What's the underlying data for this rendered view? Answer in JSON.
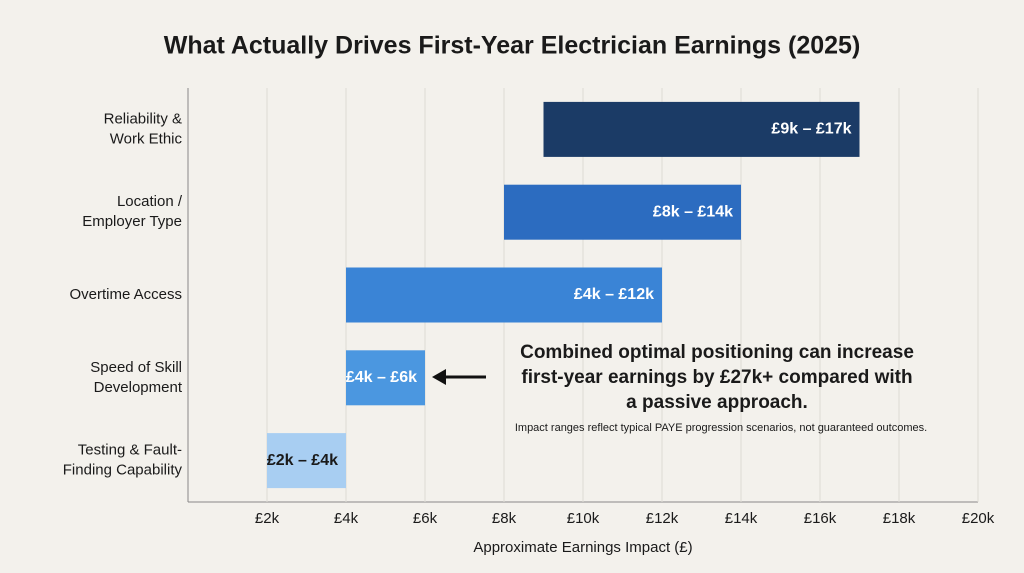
{
  "chart_data": {
    "type": "range-bar",
    "title": "What Actually Drives First-Year Electrician Earnings (2025)",
    "x_label": "Approximate Earnings Impact (£)",
    "categories": [
      "Reliability &\nWork Ethic",
      "Location /\nEmployer Type",
      "Overtime Access",
      "Speed of Skill\nDevelopment",
      "Testing & Fault-\nFinding Capability"
    ],
    "low": [
      9000,
      8000,
      4000,
      4000,
      2000
    ],
    "high": [
      17000,
      14000,
      12000,
      6000,
      4000
    ],
    "value_labels": [
      "£9k – £17k",
      "£8k – £14k",
      "£4k – £12k",
      "£4k – £6k",
      "£2k – £4k"
    ],
    "colors": [
      "#1b3b66",
      "#2c6cc0",
      "#3a84d6",
      "#4b97e0",
      "#a8cef2"
    ],
    "label_colors": [
      "#ffffff",
      "#ffffff",
      "#ffffff",
      "#ffffff",
      "#1a1a1a"
    ],
    "xlim": [
      0,
      20000
    ],
    "xticks": [
      {
        "value": 2000,
        "label": "£2k"
      },
      {
        "value": 4000,
        "label": "£4k"
      },
      {
        "value": 6000,
        "label": "£6k"
      },
      {
        "value": 8000,
        "label": "£8k"
      },
      {
        "value": 10000,
        "label": "£10k"
      },
      {
        "value": 12000,
        "label": "£12k"
      },
      {
        "value": 14000,
        "label": "£14k"
      },
      {
        "value": 16000,
        "label": "£16k"
      },
      {
        "value": 18000,
        "label": "£18k"
      },
      {
        "value": 20000,
        "label": "£20k"
      }
    ],
    "grid": true,
    "annotation": [
      "Combined optimal positioning can increase",
      "first-year earnings by £27k+ compared with",
      "a passive approach."
    ],
    "note": "Impact ranges reflect typical PAYE progression scenarios, not guaranteed outcomes."
  }
}
